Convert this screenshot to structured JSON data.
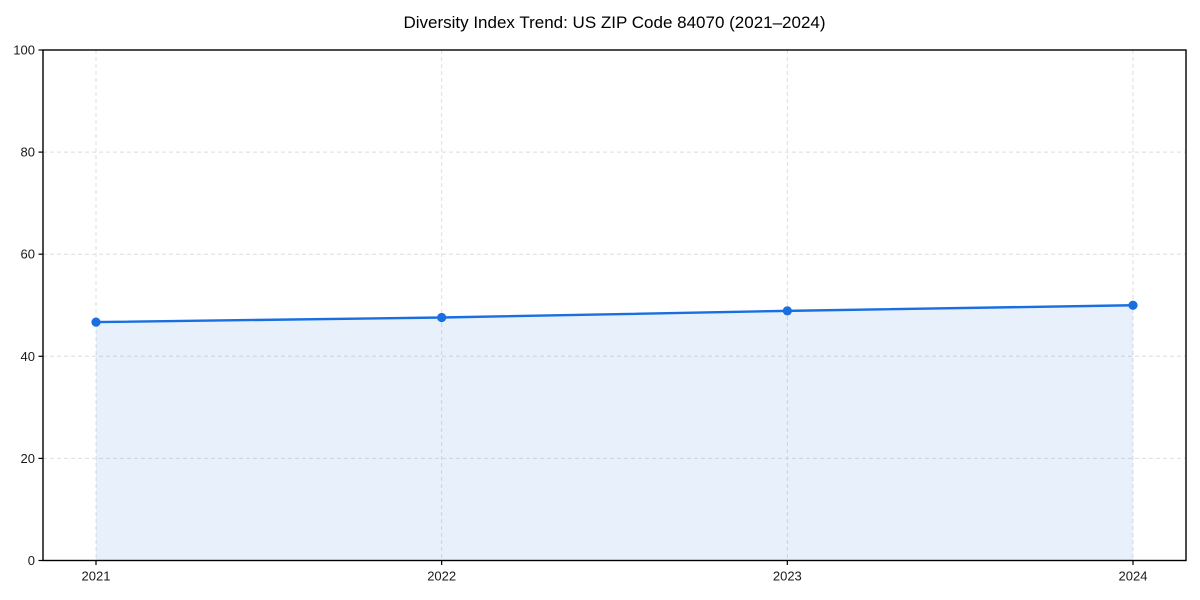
{
  "window": {
    "background": "#ffffff"
  },
  "chart_data": {
    "type": "area",
    "title": "Diversity Index Trend: US ZIP Code 84070 (2021–2024)",
    "x": [
      "2021",
      "2022",
      "2023",
      "2024"
    ],
    "series": [
      {
        "name": "Diversity Index",
        "values": [
          46.7,
          47.6,
          48.9,
          50.0
        ]
      }
    ],
    "xlabel": "",
    "ylabel": "",
    "ylim": [
      0,
      100
    ],
    "yticks": [
      0,
      20,
      40,
      60,
      80,
      100
    ],
    "grid": "dashed-both-axes",
    "legend": "none",
    "marker": "circle",
    "colors": {
      "line": "#1a6fe0",
      "marker": "#1a6fe0",
      "fill": "#1a6fe0",
      "fill_opacity": 0.1,
      "grid": "#dedede",
      "axis": "#000000",
      "tick_label": "#1a1a1a",
      "title": "#000000"
    }
  }
}
